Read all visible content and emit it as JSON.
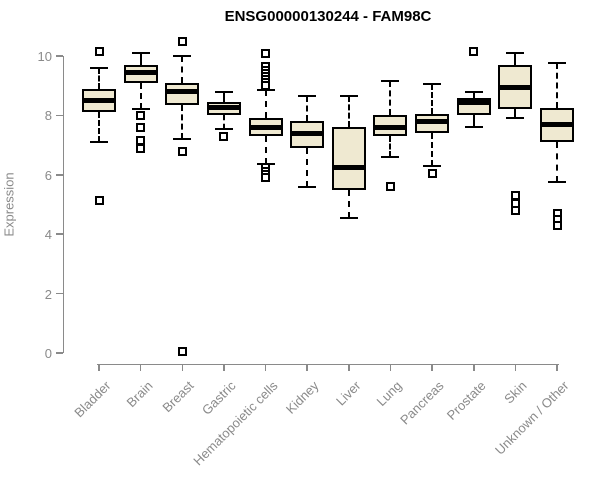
{
  "chart_data": {
    "type": "boxplot",
    "title": "ENSG00000130244 - FAM98C",
    "ylabel": "Expression",
    "yticks": [
      0,
      2,
      4,
      6,
      8,
      10
    ],
    "ylim": [
      0,
      10.6
    ],
    "grid": false,
    "legend": "none",
    "box_fill": "#EFE9D1",
    "box_border": "#000000",
    "axis_color": "#8a8a8a",
    "categories": [
      "Bladder",
      "Brain",
      "Breast",
      "Gastric",
      "Hematopoietic cells",
      "Kidney",
      "Liver",
      "Lung",
      "Pancreas",
      "Prostate",
      "Skin",
      "Unknown / Other"
    ],
    "boxes": [
      {
        "category": "Bladder",
        "whislo": 7.1,
        "q1": 8.1,
        "med": 8.5,
        "q3": 8.9,
        "whishi": 9.6,
        "outliers": [
          10.15,
          5.15
        ]
      },
      {
        "category": "Brain",
        "whislo": 8.2,
        "q1": 9.1,
        "med": 9.45,
        "q3": 9.7,
        "whishi": 10.1,
        "outliers": [
          8.0,
          7.6,
          7.15,
          6.9
        ]
      },
      {
        "category": "Breast",
        "whislo": 7.2,
        "q1": 8.35,
        "med": 8.8,
        "q3": 9.1,
        "whishi": 10.0,
        "outliers": [
          10.5,
          6.8,
          0.05
        ]
      },
      {
        "category": "Gastric",
        "whislo": 7.55,
        "q1": 8.0,
        "med": 8.25,
        "q3": 8.45,
        "whishi": 8.8,
        "outliers": [
          7.3
        ]
      },
      {
        "category": "Hematopoietic cells",
        "whislo": 6.35,
        "q1": 7.3,
        "med": 7.6,
        "q3": 7.9,
        "whishi": 8.85,
        "outliers": [
          10.1,
          9.65,
          9.5,
          9.4,
          9.3,
          9.2,
          9.1,
          9.0,
          6.25,
          6.1,
          6.0,
          5.9
        ]
      },
      {
        "category": "Kidney",
        "whislo": 5.6,
        "q1": 6.9,
        "med": 7.4,
        "q3": 7.8,
        "whishi": 8.65,
        "outliers": []
      },
      {
        "category": "Liver",
        "whislo": 4.55,
        "q1": 5.5,
        "med": 6.25,
        "q3": 7.6,
        "whishi": 8.65,
        "outliers": []
      },
      {
        "category": "Lung",
        "whislo": 6.6,
        "q1": 7.3,
        "med": 7.6,
        "q3": 8.0,
        "whishi": 9.15,
        "outliers": [
          5.6
        ]
      },
      {
        "category": "Pancreas",
        "whislo": 6.3,
        "q1": 7.4,
        "med": 7.8,
        "q3": 8.05,
        "whishi": 9.05,
        "outliers": [
          6.05
        ]
      },
      {
        "category": "Prostate",
        "whislo": 7.6,
        "q1": 8.0,
        "med": 8.45,
        "q3": 8.6,
        "whishi": 8.8,
        "outliers": [
          10.15
        ]
      },
      {
        "category": "Skin",
        "whislo": 7.9,
        "q1": 8.2,
        "med": 8.95,
        "q3": 9.7,
        "whishi": 10.1,
        "outliers": [
          5.3,
          5.05,
          4.8
        ]
      },
      {
        "category": "Unknown / Other",
        "whislo": 5.75,
        "q1": 7.1,
        "med": 7.7,
        "q3": 8.25,
        "whishi": 9.75,
        "outliers": [
          4.7,
          4.5,
          4.3
        ]
      }
    ]
  }
}
